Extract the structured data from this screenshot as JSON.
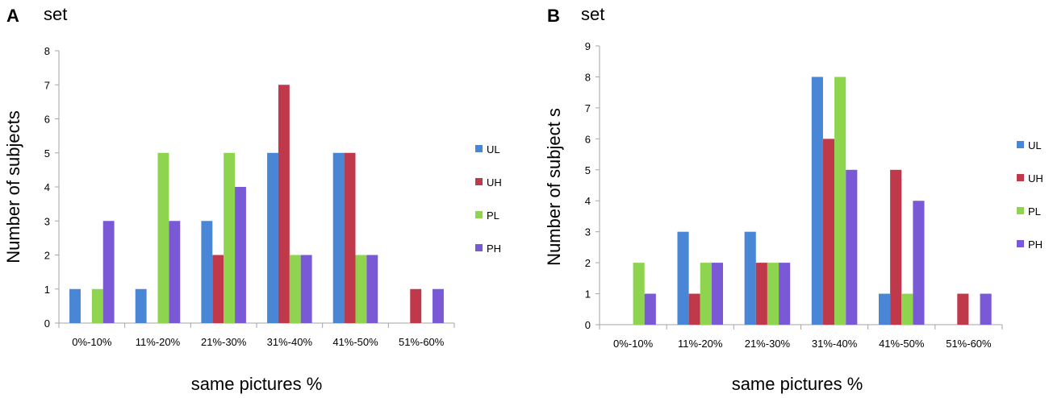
{
  "chart_data": [
    {
      "panel": "A",
      "title": "set",
      "type": "bar",
      "xlabel": "same pictures %",
      "ylabel": "Number of subjects",
      "categories": [
        "0%-10%",
        "11%-20%",
        "21%-30%",
        "31%-40%",
        "41%-50%",
        "51%-60%"
      ],
      "ylim": [
        0,
        8
      ],
      "yticks": [
        0,
        1,
        2,
        3,
        4,
        5,
        6,
        7,
        8
      ],
      "legend_position": "right",
      "series": [
        {
          "name": "UL",
          "color": "#4a86d6",
          "values": [
            1,
            1,
            3,
            5,
            5,
            0
          ]
        },
        {
          "name": "UH",
          "color": "#c0394b",
          "values": [
            0,
            0,
            2,
            7,
            5,
            1
          ]
        },
        {
          "name": "PL",
          "color": "#8fd44e",
          "values": [
            1,
            5,
            5,
            2,
            2,
            0
          ]
        },
        {
          "name": "PH",
          "color": "#7a59d6",
          "values": [
            3,
            3,
            4,
            2,
            2,
            1
          ]
        }
      ]
    },
    {
      "panel": "B",
      "title": "set",
      "type": "bar",
      "xlabel": "same pictures %",
      "ylabel": "Number of subject s",
      "categories": [
        "0%-10%",
        "11%-20%",
        "21%-30%",
        "31%-40%",
        "41%-50%",
        "51%-60%"
      ],
      "ylim": [
        0,
        9
      ],
      "yticks": [
        0,
        1,
        2,
        3,
        4,
        5,
        6,
        7,
        8,
        9
      ],
      "legend_position": "right",
      "series": [
        {
          "name": "UL",
          "color": "#4a86d6",
          "values": [
            0,
            3,
            3,
            8,
            1,
            0
          ]
        },
        {
          "name": "UH",
          "color": "#c0394b",
          "values": [
            0,
            1,
            2,
            6,
            5,
            1
          ]
        },
        {
          "name": "PL",
          "color": "#8fd44e",
          "values": [
            2,
            2,
            2,
            8,
            1,
            0
          ]
        },
        {
          "name": "PH",
          "color": "#7a59d6",
          "values": [
            1,
            2,
            2,
            5,
            4,
            1
          ]
        }
      ]
    }
  ]
}
